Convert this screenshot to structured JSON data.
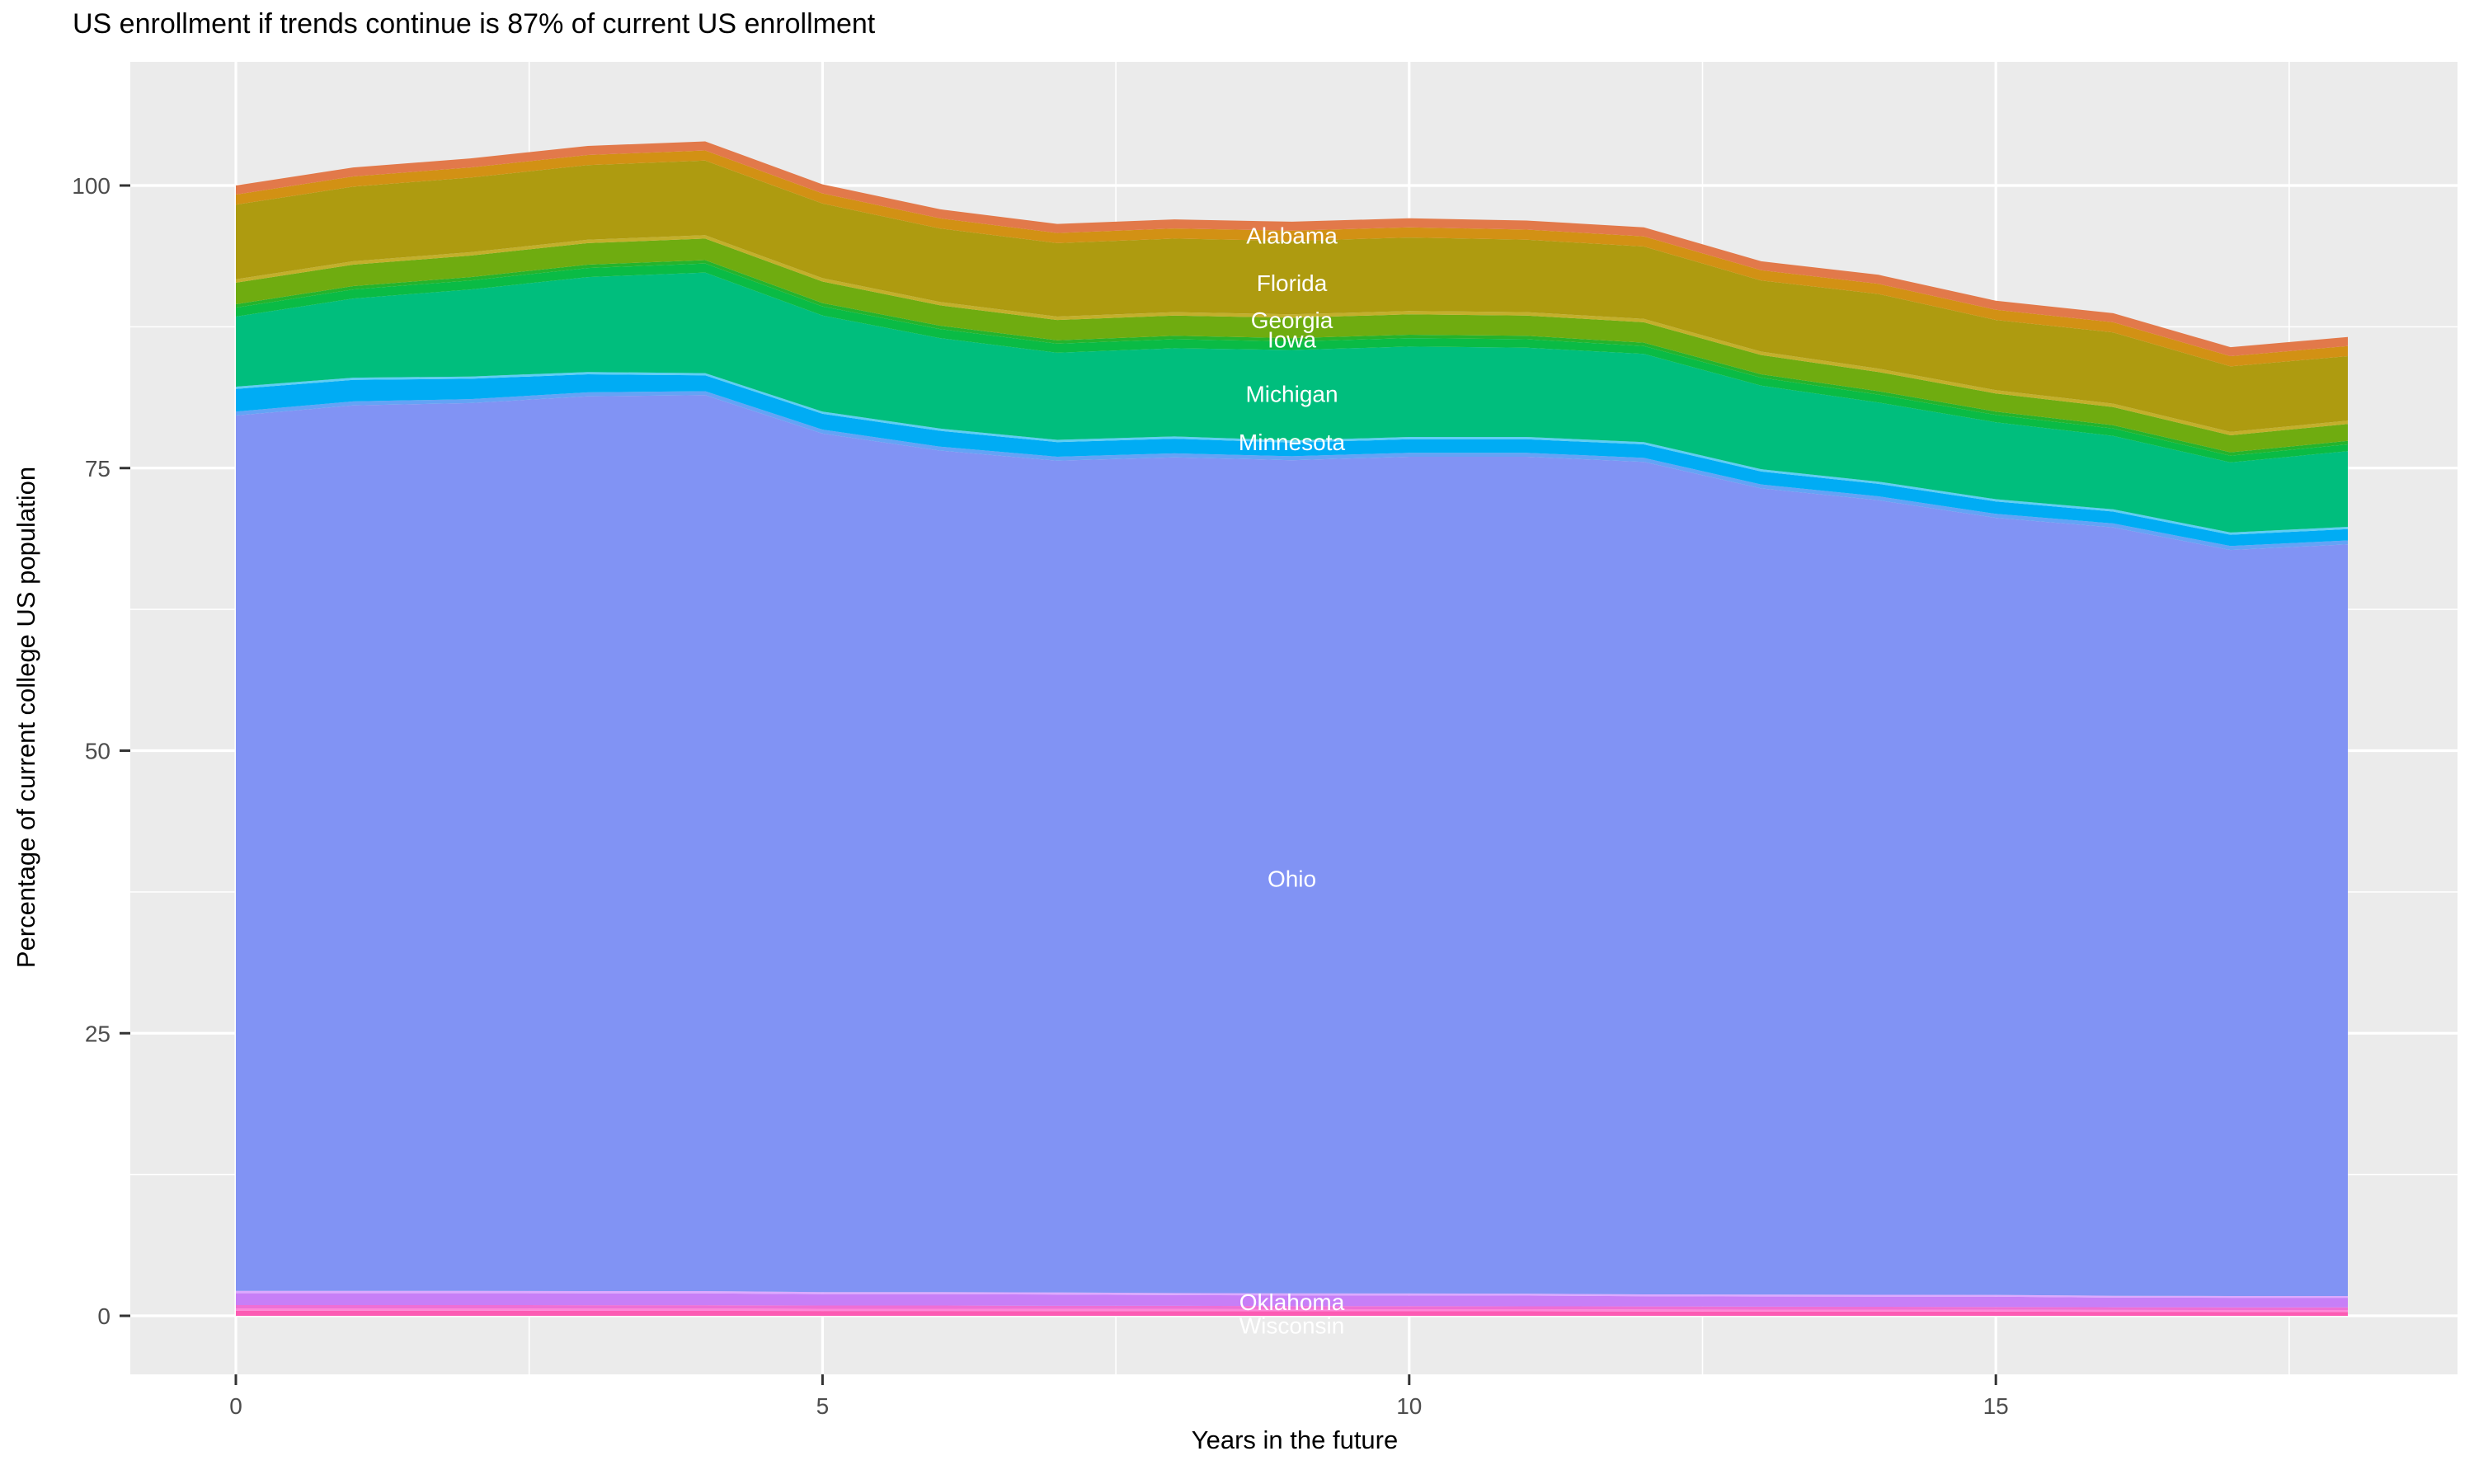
{
  "title": "US enrollment if trends continue is 87% of current US enrollment",
  "x_axis": {
    "label": "Years in the future",
    "major_ticks": [
      0,
      5,
      10,
      15
    ],
    "minor_ticks": [
      2.5,
      7.5,
      12.5,
      17.5
    ],
    "range": [
      0,
      18
    ]
  },
  "y_axis": {
    "label": "Percentage of current college US population",
    "major_ticks": [
      0,
      25,
      50,
      75,
      100
    ],
    "minor_ticks": [
      12.5,
      37.5,
      62.5,
      87.5
    ]
  },
  "colors": {
    "panel_background": "#EBEBEB",
    "gridline": "#FFFFFF",
    "tick_mark": "#333333",
    "tick_label": "#4D4D4D",
    "axis_title": "#000000",
    "plot_title": "#000000",
    "annotation_text": "#FFFFFF"
  },
  "chart_data": {
    "type": "area",
    "stacked": true,
    "title": "US enrollment if trends continue is 87% of current US enrollment",
    "xlabel": "Years in the future",
    "ylabel": "Percentage of current college US population",
    "x": [
      0,
      1,
      2,
      3,
      4,
      5,
      6,
      7,
      8,
      9,
      10,
      11,
      12,
      13,
      14,
      15,
      16,
      17,
      18
    ],
    "end_total_pct_of_current": 87,
    "series_note": "stacked bottom-to-top; labeled series are US states, 'other' entries are thin unlabeled state bands visible between the named bands",
    "series": [
      {
        "name": "Wisconsin",
        "labeled": true,
        "color": "#FC5BB3",
        "values": [
          0.45,
          0.45,
          0.45,
          0.44,
          0.44,
          0.43,
          0.43,
          0.42,
          0.42,
          0.41,
          0.4,
          0.4,
          0.39,
          0.38,
          0.38,
          0.37,
          0.36,
          0.35,
          0.35
        ]
      },
      {
        "name": "other (light pink band)",
        "labeled": false,
        "color": "#FF87D9",
        "values": [
          0.2,
          0.2,
          0.2,
          0.2,
          0.2,
          0.19,
          0.19,
          0.19,
          0.18,
          0.18,
          0.18,
          0.18,
          0.17,
          0.17,
          0.17,
          0.17,
          0.16,
          0.16,
          0.16
        ]
      },
      {
        "name": "other (pink band)",
        "labeled": false,
        "color": "#F06FD4",
        "values": [
          0.3,
          0.3,
          0.3,
          0.3,
          0.3,
          0.29,
          0.29,
          0.27,
          0.28,
          0.27,
          0.27,
          0.26,
          0.27,
          0.26,
          0.25,
          0.25,
          0.24,
          0.24,
          0.24
        ]
      },
      {
        "name": "Oklahoma",
        "labeled": true,
        "color": "#C77FF7",
        "values": [
          1.05,
          1.05,
          1.05,
          1.05,
          1.05,
          1.0,
          1.0,
          1.0,
          0.95,
          0.95,
          0.95,
          0.95,
          0.9,
          0.9,
          0.9,
          0.9,
          0.85,
          0.85,
          0.85
        ]
      },
      {
        "name": "other (light violet band)",
        "labeled": false,
        "color": "#DDA9FF",
        "values": [
          0.2,
          0.2,
          0.2,
          0.2,
          0.2,
          0.19,
          0.19,
          0.19,
          0.18,
          0.18,
          0.18,
          0.17,
          0.17,
          0.17,
          0.16,
          0.16,
          0.16,
          0.15,
          0.15
        ]
      },
      {
        "name": "Ohio",
        "labeled": true,
        "color": "#8193F4",
        "values": [
          77.45,
          78.35,
          78.55,
          79.16,
          79.26,
          75.95,
          74.45,
          73.58,
          73.94,
          73.71,
          74.02,
          74.04,
          73.65,
          71.32,
          70.29,
          68.75,
          67.98,
          66.0,
          66.5
        ]
      },
      {
        "name": "other (light blue band)",
        "labeled": false,
        "color": "#64A3F6",
        "values": [
          0.35,
          0.35,
          0.35,
          0.35,
          0.35,
          0.35,
          0.35,
          0.35,
          0.35,
          0.35,
          0.35,
          0.35,
          0.35,
          0.35,
          0.35,
          0.35,
          0.35,
          0.35,
          0.35
        ]
      },
      {
        "name": "Minnesota",
        "labeled": true,
        "color": "#00ACF4",
        "values": [
          2.0,
          1.9,
          1.8,
          1.6,
          1.4,
          1.4,
          1.4,
          1.3,
          1.3,
          1.2,
          1.2,
          1.2,
          1.2,
          1.15,
          1.1,
          1.1,
          1.05,
          1.0,
          1.0
        ]
      },
      {
        "name": "other (light cyan band)",
        "labeled": false,
        "color": "#5FCEF3",
        "values": [
          0.2,
          0.2,
          0.2,
          0.2,
          0.2,
          0.2,
          0.2,
          0.2,
          0.2,
          0.2,
          0.2,
          0.2,
          0.2,
          0.2,
          0.2,
          0.2,
          0.2,
          0.2,
          0.2
        ]
      },
      {
        "name": "Michigan",
        "labeled": true,
        "color": "#00BE7D",
        "values": [
          6.2,
          7.0,
          7.7,
          8.4,
          8.9,
          8.5,
          8.0,
          7.7,
          7.8,
          8.0,
          8.0,
          7.9,
          7.8,
          7.4,
          7.0,
          6.8,
          6.5,
          6.2,
          6.7
        ]
      },
      {
        "name": "Iowa",
        "labeled": true,
        "color": "#0ABB45",
        "values": [
          0.8,
          0.8,
          0.8,
          0.8,
          0.8,
          0.8,
          0.8,
          0.8,
          0.8,
          0.75,
          0.75,
          0.75,
          0.7,
          0.7,
          0.7,
          0.65,
          0.65,
          0.6,
          0.6
        ]
      },
      {
        "name": "other (bright green band)",
        "labeled": false,
        "color": "#25B42C",
        "values": [
          0.3,
          0.3,
          0.3,
          0.3,
          0.3,
          0.3,
          0.3,
          0.3,
          0.3,
          0.3,
          0.3,
          0.3,
          0.3,
          0.3,
          0.3,
          0.3,
          0.3,
          0.3,
          0.3
        ]
      },
      {
        "name": "Georgia",
        "labeled": true,
        "color": "#6FAC10",
        "values": [
          1.9,
          1.9,
          1.9,
          1.9,
          1.9,
          1.9,
          1.8,
          1.8,
          1.8,
          1.8,
          1.8,
          1.8,
          1.8,
          1.7,
          1.7,
          1.6,
          1.6,
          1.5,
          1.5
        ]
      },
      {
        "name": "other (light olive band)",
        "labeled": false,
        "color": "#C3AF2B",
        "values": [
          0.3,
          0.3,
          0.3,
          0.3,
          0.3,
          0.3,
          0.3,
          0.3,
          0.3,
          0.3,
          0.3,
          0.3,
          0.3,
          0.3,
          0.3,
          0.3,
          0.3,
          0.3,
          0.3
        ]
      },
      {
        "name": "Florida",
        "labeled": true,
        "color": "#AE9B10",
        "values": [
          6.6,
          6.6,
          6.6,
          6.6,
          6.6,
          6.6,
          6.5,
          6.5,
          6.5,
          6.5,
          6.5,
          6.4,
          6.4,
          6.3,
          6.6,
          6.2,
          6.3,
          5.8,
          5.7
        ]
      },
      {
        "name": "other (amber band)",
        "labeled": false,
        "color": "#D29114",
        "values": [
          0.9,
          0.9,
          0.9,
          0.9,
          0.9,
          0.9,
          0.9,
          0.9,
          0.9,
          0.9,
          0.9,
          0.9,
          0.9,
          0.9,
          0.9,
          0.9,
          0.9,
          0.9,
          0.9
        ]
      },
      {
        "name": "Alabama",
        "labeled": true,
        "color": "#E2794A",
        "values": [
          0.8,
          0.8,
          0.8,
          0.8,
          0.8,
          0.8,
          0.8,
          0.8,
          0.8,
          0.8,
          0.8,
          0.8,
          0.8,
          0.8,
          0.8,
          0.8,
          0.8,
          0.8,
          0.8
        ]
      }
    ],
    "annotations": [
      {
        "text": "Alabama",
        "x": 9,
        "y": 95.6
      },
      {
        "text": "Florida",
        "x": 9,
        "y": 91.4
      },
      {
        "text": "Georgia",
        "x": 9,
        "y": 88.1
      },
      {
        "text": "Iowa",
        "x": 9,
        "y": 86.4
      },
      {
        "text": "Michigan",
        "x": 9,
        "y": 81.6
      },
      {
        "text": "Minnesota",
        "x": 9,
        "y": 77.3
      },
      {
        "text": "Ohio",
        "x": 9,
        "y": 38.7
      },
      {
        "text": "Oklahoma",
        "x": 9,
        "y": 1.24
      },
      {
        "text": "Wisconsin",
        "x": 9,
        "y": -0.85
      }
    ],
    "legend": "none"
  }
}
